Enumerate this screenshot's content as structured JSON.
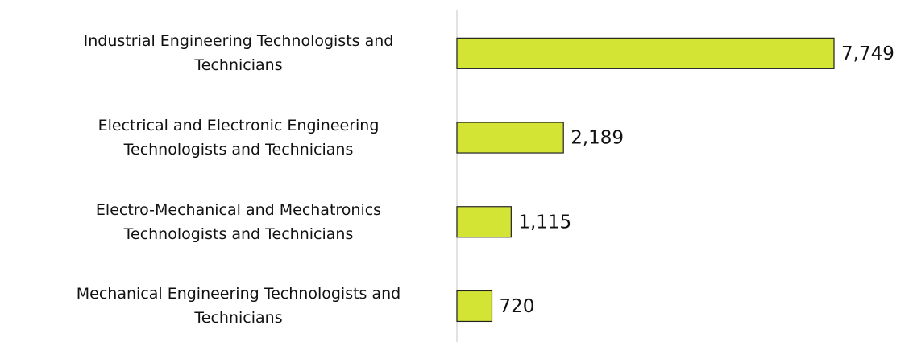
{
  "chart_data": {
    "type": "bar",
    "orientation": "horizontal",
    "categories": [
      "Industrial Engineering Technologists and Technicians",
      "Electrical and Electronic Engineering Technologists and Technicians",
      "Electro-Mechanical and Mechatronics Technologists and Technicians",
      "Mechanical Engineering Technologists and Technicians"
    ],
    "values": [
      7749,
      2189,
      1115,
      720
    ],
    "value_labels": [
      "7,749",
      "2,189",
      "1,115",
      "720"
    ],
    "color": "#d4e435"
  }
}
